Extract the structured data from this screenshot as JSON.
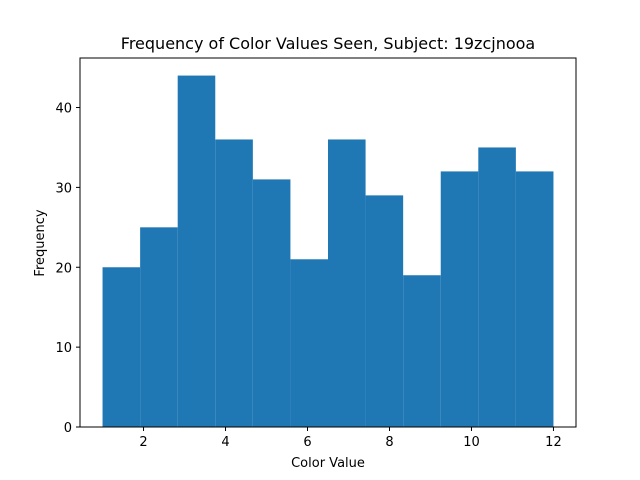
{
  "chart_data": {
    "type": "bar",
    "title": "Frequency of Color Values Seen, Subject: 19zcjnooa",
    "xlabel": "Color Value",
    "ylabel": "Frequency",
    "bin_edges": [
      1.0,
      1.9167,
      2.8333,
      3.75,
      4.6667,
      5.5833,
      6.5,
      7.4167,
      8.3333,
      9.25,
      10.1667,
      11.0833,
      12.0
    ],
    "values": [
      20,
      25,
      44,
      36,
      31,
      21,
      36,
      29,
      19,
      32,
      35,
      32
    ],
    "xlim": [
      0.45,
      12.55
    ],
    "ylim": [
      0,
      46.2
    ],
    "xticks": [
      2,
      4,
      6,
      8,
      10,
      12
    ],
    "yticks": [
      0,
      10,
      20,
      30,
      40
    ],
    "bar_color": "#1f77b4",
    "grid": false,
    "legend": "none"
  }
}
